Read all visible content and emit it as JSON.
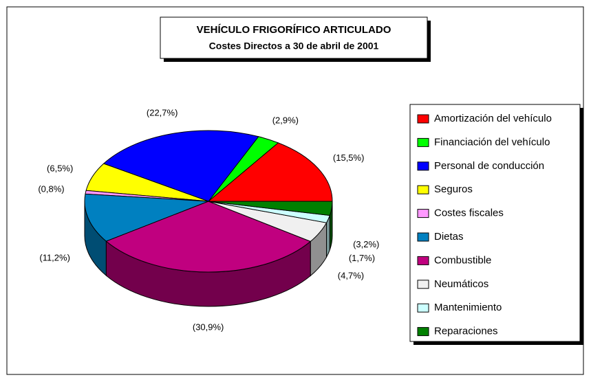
{
  "chart_data": {
    "type": "pie",
    "title": "VEHÍCULO FRIGORÍFICO ARTICULADO",
    "subtitle": "Costes Directos a 30 de abril de 2001",
    "categories": [
      "Amortización del vehículo",
      "Financiación del vehículo",
      "Personal de conducción",
      "Seguros",
      "Costes fiscales",
      "Dietas",
      "Combustible",
      "Neumáticos",
      "Mantenimiento",
      "Reparaciones"
    ],
    "values": [
      15.5,
      2.9,
      22.7,
      6.5,
      0.8,
      11.2,
      30.9,
      4.7,
      1.7,
      3.2
    ],
    "value_labels": [
      "(15,5%)",
      "(2,9%)",
      "(22,7%)",
      "(6,5%)",
      "(0,8%)",
      "(11,2%)",
      "(30,9%)",
      "(4,7%)",
      "(1,7%)",
      "(3,2%)"
    ],
    "colors": [
      "#ff0000",
      "#00ff00",
      "#0000ff",
      "#ffff00",
      "#ff99ff",
      "#0080c0",
      "#c0007f",
      "#f0f0f0",
      "#ccffff",
      "#008000"
    ]
  }
}
